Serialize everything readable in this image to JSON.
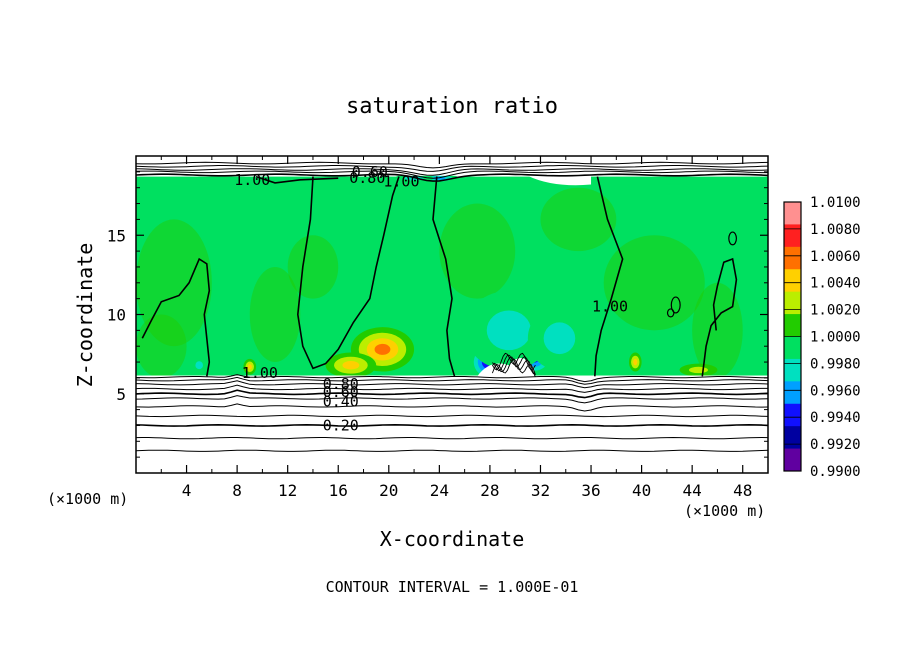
{
  "chart_data": {
    "type": "heatmap",
    "title": "saturation ratio",
    "xlabel": "X-coordinate",
    "ylabel": "Z-coordinate",
    "x_unit": "(×1000 m)",
    "z_unit": "(×1000 m)",
    "xlim": [
      0,
      50
    ],
    "ylim": [
      0,
      20
    ],
    "x_ticks": [
      4,
      8,
      12,
      16,
      20,
      24,
      28,
      32,
      36,
      40,
      44,
      48
    ],
    "y_ticks": [
      5,
      10,
      15
    ],
    "footer": "CONTOUR INTERVAL = 1.000E-01",
    "colorbar": {
      "levels": [
        "1.0100",
        "1.0080",
        "1.0060",
        "1.0040",
        "1.0020",
        "1.0000",
        "0.9980",
        "0.9960",
        "0.9940",
        "0.9920",
        "0.9900"
      ],
      "colors": [
        "#ff9090",
        "#ff2020",
        "#ff7000",
        "#ffd000",
        "#bbee00",
        "#22cc00",
        "#00e060",
        "#00e0c0",
        "#00a0ff",
        "#1010ff",
        "#0000a0",
        "#6000a0"
      ]
    },
    "contour_labels": [
      {
        "text": "0.60",
        "x": 18.5,
        "z": 19.0
      },
      {
        "text": "0.80",
        "x": 18.3,
        "z": 18.6
      },
      {
        "text": "1.00",
        "x": 9.2,
        "z": 18.5
      },
      {
        "text": "1.00",
        "x": 21.0,
        "z": 18.4
      },
      {
        "text": "1.00",
        "x": 37.5,
        "z": 10.5
      },
      {
        "text": "1.00",
        "x": 9.8,
        "z": 6.3
      },
      {
        "text": "0.80",
        "x": 16.2,
        "z": 5.6
      },
      {
        "text": "0.60",
        "x": 16.2,
        "z": 5.1
      },
      {
        "text": "0.40",
        "x": 16.2,
        "z": 4.5
      },
      {
        "text": "0.20",
        "x": 16.2,
        "z": 3.0
      }
    ],
    "anomalies": [
      {
        "name": "supersaturation",
        "x": 19.5,
        "z": 7.8,
        "sx": 2.5,
        "sz": 1.4,
        "value": 1.007
      },
      {
        "name": "supersaturation",
        "x": 17.0,
        "z": 6.8,
        "sx": 2.0,
        "sz": 0.8,
        "value": 1.004
      },
      {
        "name": "supersaturation",
        "x": 9.0,
        "z": 6.7,
        "sx": 0.5,
        "sz": 0.5,
        "value": 1.004
      },
      {
        "name": "supersaturation",
        "x": 39.5,
        "z": 7.0,
        "sx": 0.5,
        "sz": 0.6,
        "value": 1.005
      },
      {
        "name": "supersaturation",
        "x": 44.5,
        "z": 6.5,
        "sx": 1.5,
        "sz": 0.4,
        "value": 1.003
      },
      {
        "name": "subsaturation",
        "x": 28.0,
        "z": 7.0,
        "sx": 1.6,
        "sz": 1.2,
        "value": 0.991
      },
      {
        "name": "subsaturation",
        "x": 31.5,
        "z": 7.2,
        "sx": 1.5,
        "sz": 1.0,
        "value": 0.993
      },
      {
        "name": "subsaturation",
        "x": 29.5,
        "z": 9.0,
        "sx": 3.5,
        "sz": 2.5,
        "value": 0.997
      },
      {
        "name": "subsaturation",
        "x": 33.5,
        "z": 8.5,
        "sx": 2.5,
        "sz": 2.0,
        "value": 0.9975
      },
      {
        "name": "subsaturation",
        "x": 5.0,
        "z": 6.8,
        "sx": 0.6,
        "sz": 0.5,
        "value": 0.997
      },
      {
        "name": "subsaturation",
        "x": 24.0,
        "z": 18.6,
        "sx": 1.5,
        "sz": 0.3,
        "value": 0.995
      },
      {
        "name": "subsaturation",
        "x": 22.0,
        "z": 18.6,
        "sx": 1.5,
        "sz": 0.3,
        "value": 0.997
      }
    ]
  }
}
